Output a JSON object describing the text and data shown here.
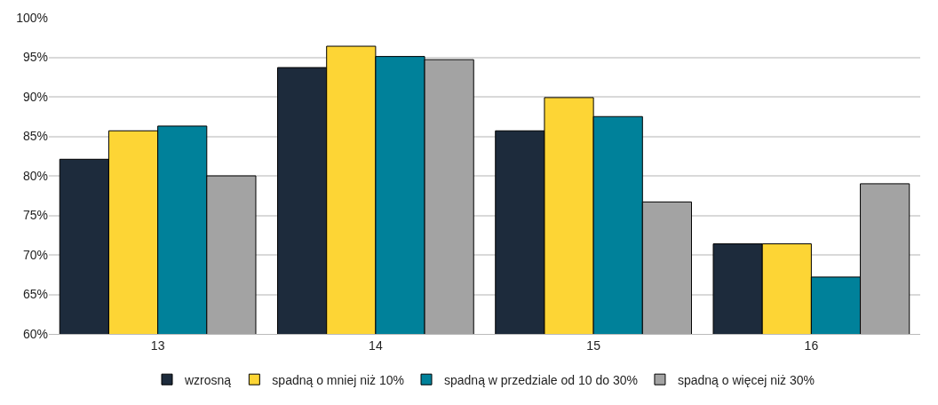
{
  "chart_data": {
    "type": "bar",
    "categories": [
      "13",
      "14",
      "15",
      "16"
    ],
    "series": [
      {
        "name": "wzrosną",
        "color": "#1d2b3c",
        "values": [
          82.1,
          93.7,
          85.7,
          71.4
        ]
      },
      {
        "name": "spadną o mniej niż 10%",
        "color": "#fdd535",
        "values": [
          85.7,
          96.4,
          89.9,
          71.4
        ]
      },
      {
        "name": "spadną w przedziale od 10 do 30%",
        "color": "#00819a",
        "values": [
          86.3,
          95.1,
          87.5,
          67.2
        ]
      },
      {
        "name": "spadną o więcej niż 30%",
        "color": "#a3a3a3",
        "values": [
          80.0,
          94.7,
          76.7,
          79.0
        ]
      }
    ],
    "ylim": [
      60,
      100
    ],
    "yticks": [
      {
        "value": 60,
        "label": "60%"
      },
      {
        "value": 65,
        "label": "65%"
      },
      {
        "value": 70,
        "label": "70%"
      },
      {
        "value": 75,
        "label": "75%"
      },
      {
        "value": 80,
        "label": "80%"
      },
      {
        "value": 85,
        "label": "85%"
      },
      {
        "value": 90,
        "label": "90%"
      },
      {
        "value": 95,
        "label": "95%"
      },
      {
        "value": 100,
        "label": "100%"
      }
    ],
    "grid": "y",
    "legend": "bottom"
  }
}
